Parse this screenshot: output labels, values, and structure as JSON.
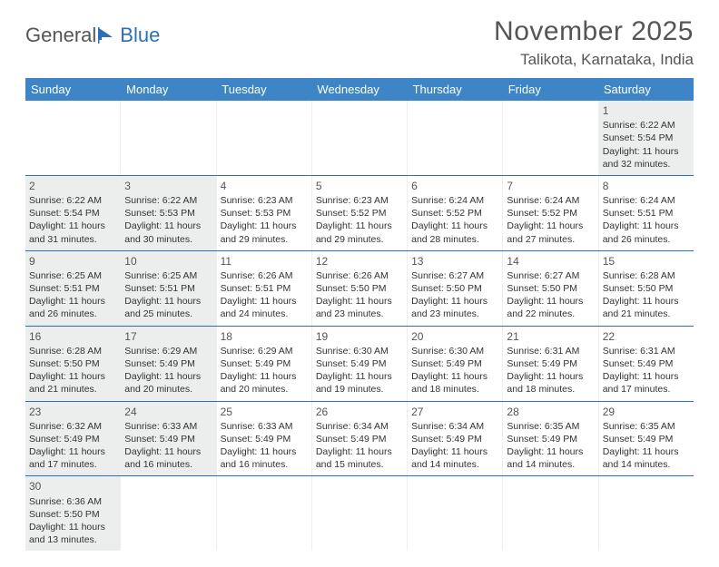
{
  "logo": {
    "text1": "General",
    "text2": "Blue"
  },
  "title": "November 2025",
  "location": "Talikota, Karnataka, India",
  "header_bg": "#3d85c6",
  "border_color": "#2d6fb5",
  "shaded_bg": "#eceded",
  "dow": [
    "Sunday",
    "Monday",
    "Tuesday",
    "Wednesday",
    "Thursday",
    "Friday",
    "Saturday"
  ],
  "weeks": [
    [
      {
        "empty": true
      },
      {
        "empty": true
      },
      {
        "empty": true
      },
      {
        "empty": true
      },
      {
        "empty": true
      },
      {
        "empty": true
      },
      {
        "n": "1",
        "shaded": true,
        "sr": "Sunrise: 6:22 AM",
        "ss": "Sunset: 5:54 PM",
        "dl": "Daylight: 11 hours and 32 minutes."
      }
    ],
    [
      {
        "n": "2",
        "shaded": true,
        "sr": "Sunrise: 6:22 AM",
        "ss": "Sunset: 5:54 PM",
        "dl": "Daylight: 11 hours and 31 minutes."
      },
      {
        "n": "3",
        "shaded": true,
        "sr": "Sunrise: 6:22 AM",
        "ss": "Sunset: 5:53 PM",
        "dl": "Daylight: 11 hours and 30 minutes."
      },
      {
        "n": "4",
        "shaded": false,
        "sr": "Sunrise: 6:23 AM",
        "ss": "Sunset: 5:53 PM",
        "dl": "Daylight: 11 hours and 29 minutes."
      },
      {
        "n": "5",
        "shaded": false,
        "sr": "Sunrise: 6:23 AM",
        "ss": "Sunset: 5:52 PM",
        "dl": "Daylight: 11 hours and 29 minutes."
      },
      {
        "n": "6",
        "shaded": false,
        "sr": "Sunrise: 6:24 AM",
        "ss": "Sunset: 5:52 PM",
        "dl": "Daylight: 11 hours and 28 minutes."
      },
      {
        "n": "7",
        "shaded": false,
        "sr": "Sunrise: 6:24 AM",
        "ss": "Sunset: 5:52 PM",
        "dl": "Daylight: 11 hours and 27 minutes."
      },
      {
        "n": "8",
        "shaded": false,
        "sr": "Sunrise: 6:24 AM",
        "ss": "Sunset: 5:51 PM",
        "dl": "Daylight: 11 hours and 26 minutes."
      }
    ],
    [
      {
        "n": "9",
        "shaded": true,
        "sr": "Sunrise: 6:25 AM",
        "ss": "Sunset: 5:51 PM",
        "dl": "Daylight: 11 hours and 26 minutes."
      },
      {
        "n": "10",
        "shaded": true,
        "sr": "Sunrise: 6:25 AM",
        "ss": "Sunset: 5:51 PM",
        "dl": "Daylight: 11 hours and 25 minutes."
      },
      {
        "n": "11",
        "shaded": false,
        "sr": "Sunrise: 6:26 AM",
        "ss": "Sunset: 5:51 PM",
        "dl": "Daylight: 11 hours and 24 minutes."
      },
      {
        "n": "12",
        "shaded": false,
        "sr": "Sunrise: 6:26 AM",
        "ss": "Sunset: 5:50 PM",
        "dl": "Daylight: 11 hours and 23 minutes."
      },
      {
        "n": "13",
        "shaded": false,
        "sr": "Sunrise: 6:27 AM",
        "ss": "Sunset: 5:50 PM",
        "dl": "Daylight: 11 hours and 23 minutes."
      },
      {
        "n": "14",
        "shaded": false,
        "sr": "Sunrise: 6:27 AM",
        "ss": "Sunset: 5:50 PM",
        "dl": "Daylight: 11 hours and 22 minutes."
      },
      {
        "n": "15",
        "shaded": false,
        "sr": "Sunrise: 6:28 AM",
        "ss": "Sunset: 5:50 PM",
        "dl": "Daylight: 11 hours and 21 minutes."
      }
    ],
    [
      {
        "n": "16",
        "shaded": true,
        "sr": "Sunrise: 6:28 AM",
        "ss": "Sunset: 5:50 PM",
        "dl": "Daylight: 11 hours and 21 minutes."
      },
      {
        "n": "17",
        "shaded": true,
        "sr": "Sunrise: 6:29 AM",
        "ss": "Sunset: 5:49 PM",
        "dl": "Daylight: 11 hours and 20 minutes."
      },
      {
        "n": "18",
        "shaded": false,
        "sr": "Sunrise: 6:29 AM",
        "ss": "Sunset: 5:49 PM",
        "dl": "Daylight: 11 hours and 20 minutes."
      },
      {
        "n": "19",
        "shaded": false,
        "sr": "Sunrise: 6:30 AM",
        "ss": "Sunset: 5:49 PM",
        "dl": "Daylight: 11 hours and 19 minutes."
      },
      {
        "n": "20",
        "shaded": false,
        "sr": "Sunrise: 6:30 AM",
        "ss": "Sunset: 5:49 PM",
        "dl": "Daylight: 11 hours and 18 minutes."
      },
      {
        "n": "21",
        "shaded": false,
        "sr": "Sunrise: 6:31 AM",
        "ss": "Sunset: 5:49 PM",
        "dl": "Daylight: 11 hours and 18 minutes."
      },
      {
        "n": "22",
        "shaded": false,
        "sr": "Sunrise: 6:31 AM",
        "ss": "Sunset: 5:49 PM",
        "dl": "Daylight: 11 hours and 17 minutes."
      }
    ],
    [
      {
        "n": "23",
        "shaded": true,
        "sr": "Sunrise: 6:32 AM",
        "ss": "Sunset: 5:49 PM",
        "dl": "Daylight: 11 hours and 17 minutes."
      },
      {
        "n": "24",
        "shaded": true,
        "sr": "Sunrise: 6:33 AM",
        "ss": "Sunset: 5:49 PM",
        "dl": "Daylight: 11 hours and 16 minutes."
      },
      {
        "n": "25",
        "shaded": false,
        "sr": "Sunrise: 6:33 AM",
        "ss": "Sunset: 5:49 PM",
        "dl": "Daylight: 11 hours and 16 minutes."
      },
      {
        "n": "26",
        "shaded": false,
        "sr": "Sunrise: 6:34 AM",
        "ss": "Sunset: 5:49 PM",
        "dl": "Daylight: 11 hours and 15 minutes."
      },
      {
        "n": "27",
        "shaded": false,
        "sr": "Sunrise: 6:34 AM",
        "ss": "Sunset: 5:49 PM",
        "dl": "Daylight: 11 hours and 14 minutes."
      },
      {
        "n": "28",
        "shaded": false,
        "sr": "Sunrise: 6:35 AM",
        "ss": "Sunset: 5:49 PM",
        "dl": "Daylight: 11 hours and 14 minutes."
      },
      {
        "n": "29",
        "shaded": false,
        "sr": "Sunrise: 6:35 AM",
        "ss": "Sunset: 5:49 PM",
        "dl": "Daylight: 11 hours and 14 minutes."
      }
    ],
    [
      {
        "n": "30",
        "shaded": true,
        "sr": "Sunrise: 6:36 AM",
        "ss": "Sunset: 5:50 PM",
        "dl": "Daylight: 11 hours and 13 minutes."
      },
      {
        "empty": true
      },
      {
        "empty": true
      },
      {
        "empty": true
      },
      {
        "empty": true
      },
      {
        "empty": true
      },
      {
        "empty": true
      }
    ]
  ]
}
